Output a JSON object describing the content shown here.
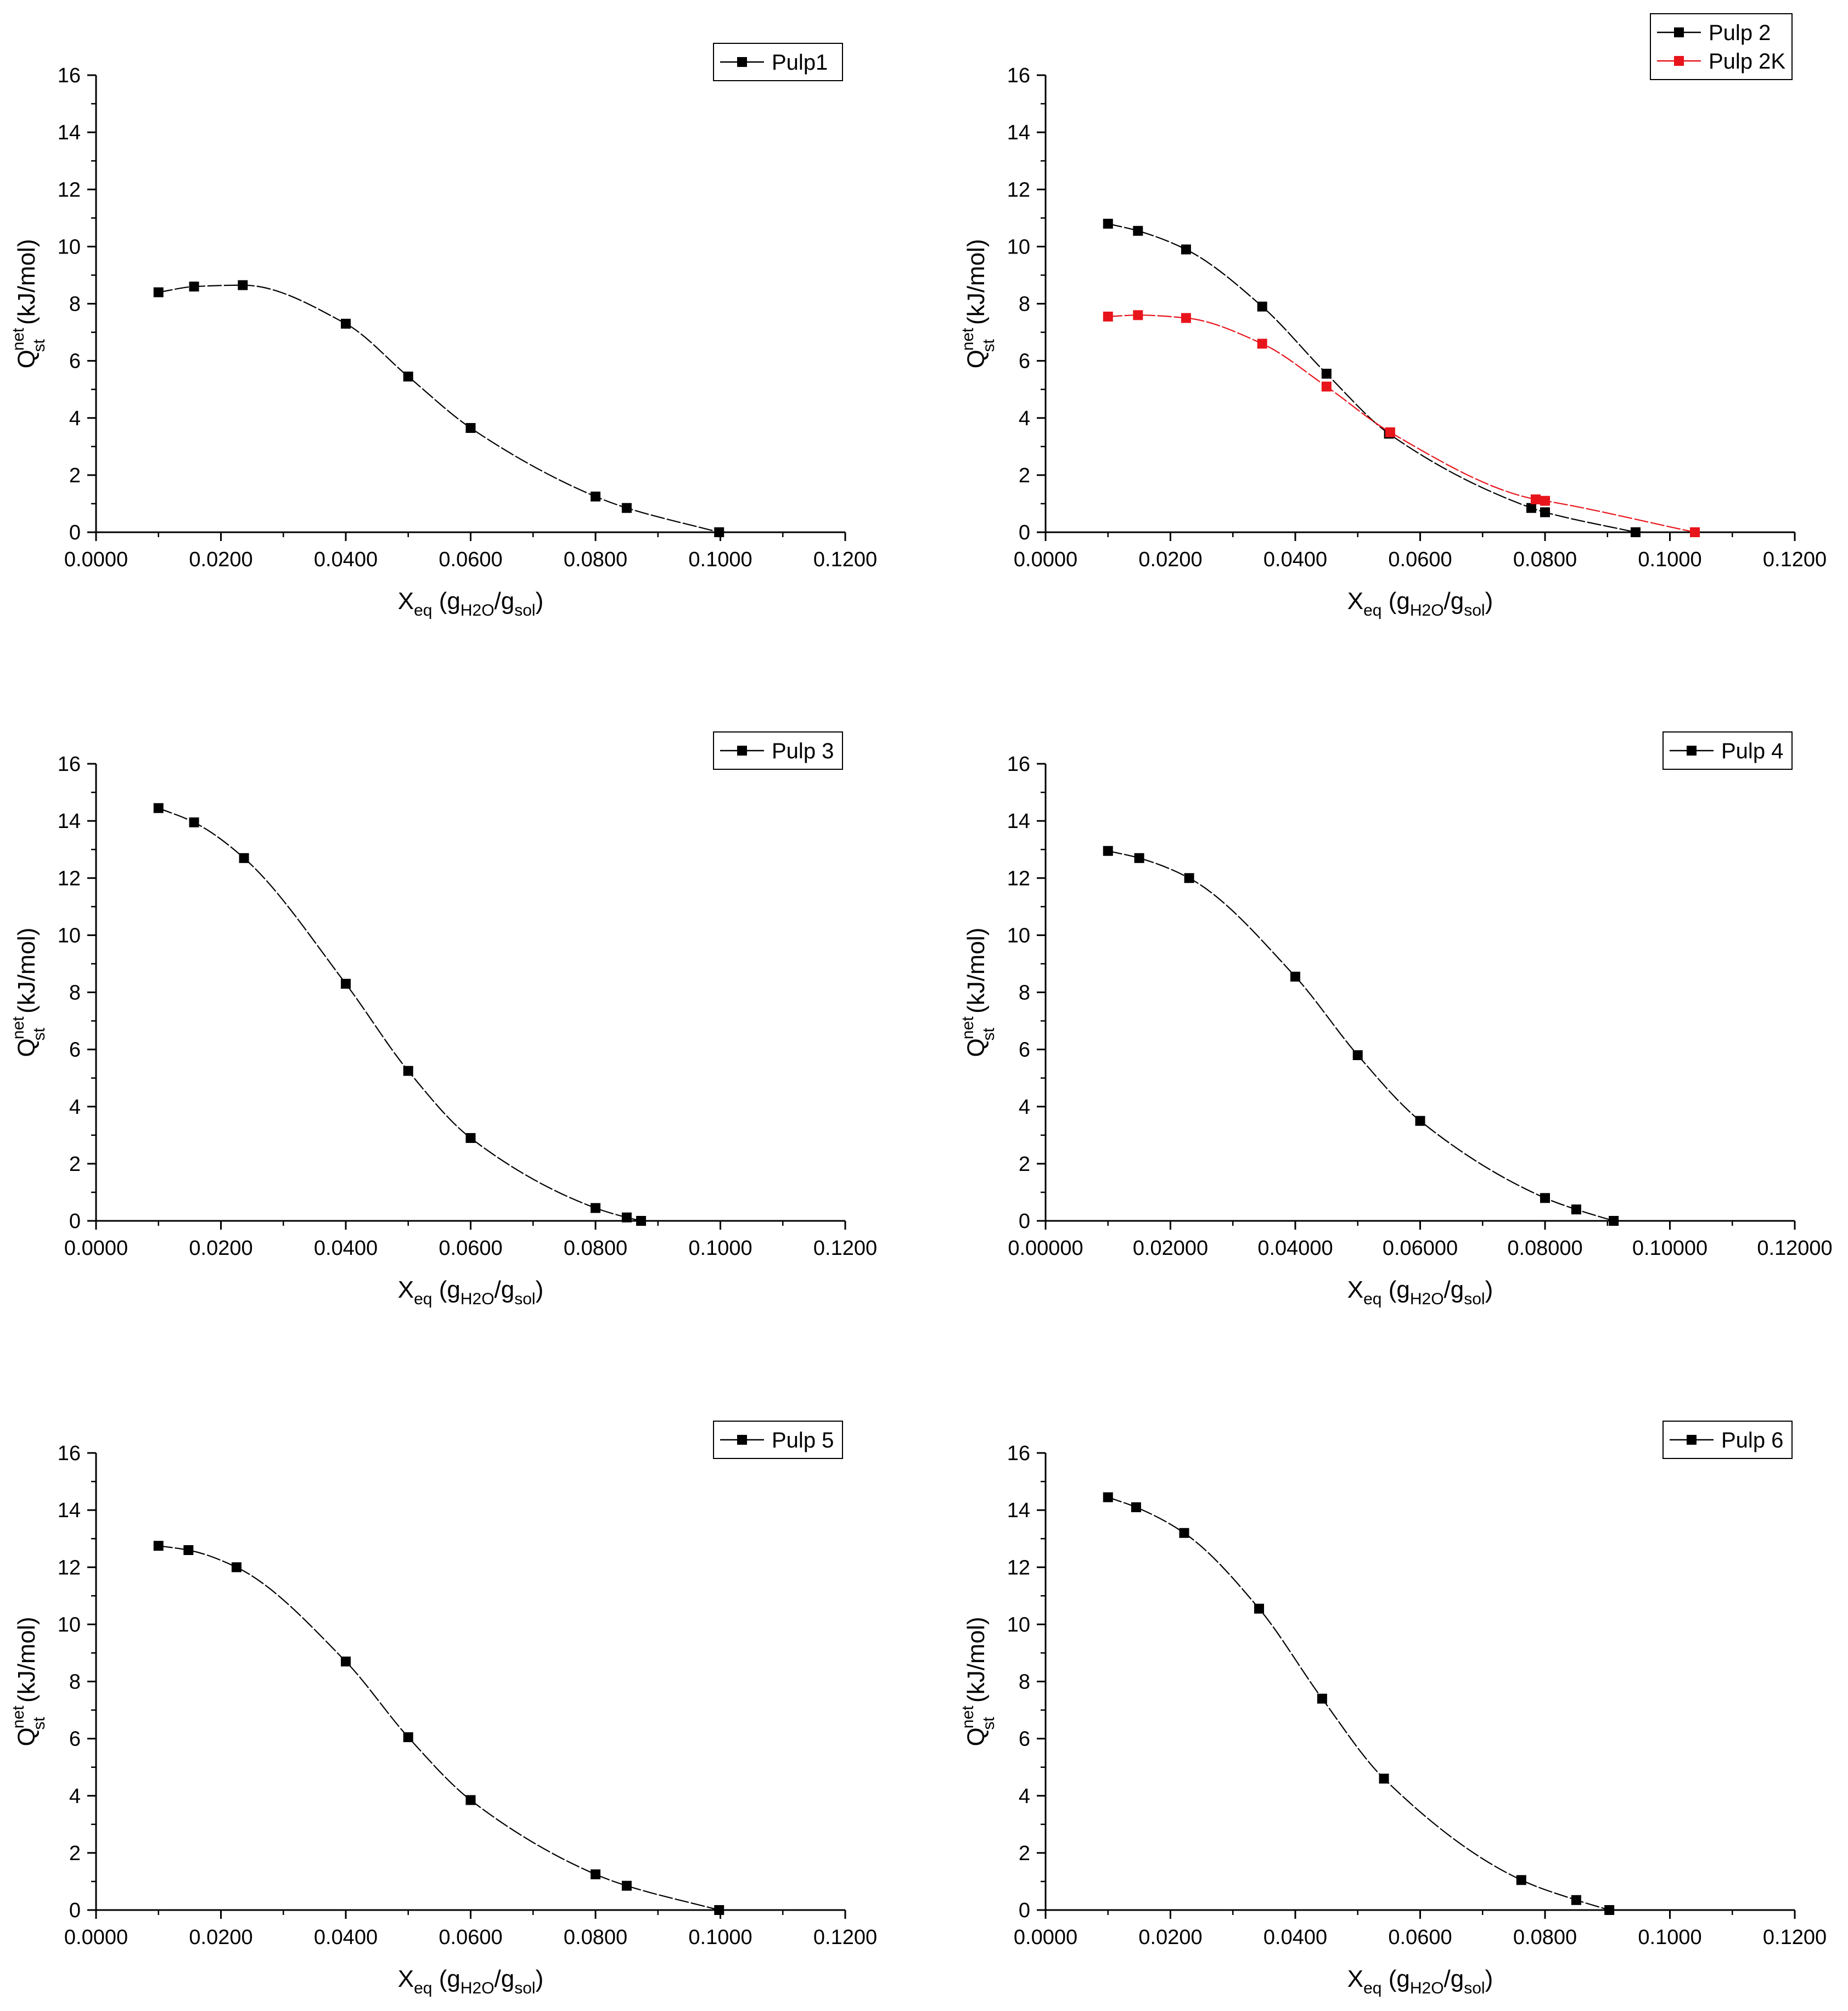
{
  "colors": {
    "black": "#000000",
    "red": "#e8141b"
  },
  "chart_data": [
    {
      "type": "line",
      "panel": "top-left",
      "legend_position": "top-right",
      "ylim": [
        0,
        16
      ],
      "yticks": [
        "0",
        "2",
        "4",
        "6",
        "8",
        "10",
        "12",
        "14",
        "16"
      ],
      "xlim": [
        0,
        0.12
      ],
      "xticks": [
        "0.0000",
        "0.0200",
        "0.0400",
        "0.0600",
        "0.0800",
        "0.1000",
        "0.1200"
      ],
      "ylabel": {
        "q": "Q",
        "sup": "net",
        "sub": "st",
        "rest": " (kJ/mol)"
      },
      "xlabel": {
        "x": "X",
        "xsub": "eq",
        "g1": " (g",
        "s1": "H2O",
        "g2": "/g",
        "s2": "sol",
        "end": ")"
      },
      "series": [
        {
          "name": "Pulp1",
          "color": "#000000",
          "x": [
            0.01,
            0.0157,
            0.0235,
            0.04,
            0.05,
            0.06,
            0.08,
            0.085,
            0.0998
          ],
          "y": [
            8.4,
            8.6,
            8.65,
            7.3,
            5.45,
            3.65,
            1.25,
            0.85,
            0.0
          ]
        }
      ]
    },
    {
      "type": "line",
      "panel": "top-right",
      "legend_position": "top-right",
      "ylim": [
        0,
        16
      ],
      "yticks": [
        "0",
        "2",
        "4",
        "6",
        "8",
        "10",
        "12",
        "14",
        "16"
      ],
      "xlim": [
        0,
        0.12
      ],
      "xticks": [
        "0.0000",
        "0.0200",
        "0.0400",
        "0.0600",
        "0.0800",
        "0.1000",
        "0.1200"
      ],
      "ylabel": {
        "q": "Q",
        "sup": "net",
        "sub": "st",
        "rest": " (kJ/mol)"
      },
      "xlabel": {
        "x": "X",
        "xsub": "eq",
        "g1": " (g",
        "s1": "H2O",
        "g2": "/g",
        "s2": "sol",
        "end": ")"
      },
      "series": [
        {
          "name": "Pulp 2",
          "color": "#000000",
          "x": [
            0.01,
            0.0148,
            0.0225,
            0.0347,
            0.045,
            0.055,
            0.0778,
            0.08,
            0.0945
          ],
          "y": [
            10.8,
            10.55,
            9.9,
            7.9,
            5.55,
            3.45,
            0.85,
            0.7,
            0.0
          ]
        },
        {
          "name": "Pulp 2K",
          "color": "#e8141b",
          "x": [
            0.01,
            0.0148,
            0.0225,
            0.0347,
            0.045,
            0.0552,
            0.0785,
            0.08,
            0.104
          ],
          "y": [
            7.55,
            7.6,
            7.5,
            6.6,
            5.1,
            3.5,
            1.15,
            1.1,
            0.0
          ]
        }
      ]
    },
    {
      "type": "line",
      "panel": "middle-left",
      "legend_position": "top-right",
      "ylim": [
        0,
        16
      ],
      "yticks": [
        "0",
        "2",
        "4",
        "6",
        "8",
        "10",
        "12",
        "14",
        "16"
      ],
      "xlim": [
        0,
        0.12
      ],
      "xticks": [
        "0.0000",
        "0.0200",
        "0.0400",
        "0.0600",
        "0.0800",
        "0.1000",
        "0.1200"
      ],
      "ylabel": {
        "q": "Q",
        "sup": "net",
        "sub": "st",
        "rest": " (kJ/mol)"
      },
      "xlabel": {
        "x": "X",
        "xsub": "eq",
        "g1": " (g",
        "s1": "H2O",
        "g2": "/g",
        "s2": "sol",
        "end": ")"
      },
      "series": [
        {
          "name": "Pulp 3",
          "color": "#000000",
          "x": [
            0.01,
            0.0157,
            0.0237,
            0.04,
            0.05,
            0.06,
            0.08,
            0.085,
            0.0873
          ],
          "y": [
            14.45,
            13.95,
            12.7,
            8.3,
            5.25,
            2.9,
            0.45,
            0.12,
            0.0
          ]
        }
      ]
    },
    {
      "type": "line",
      "panel": "middle-right",
      "legend_position": "top-right",
      "ylim": [
        0,
        16
      ],
      "yticks": [
        "0",
        "2",
        "4",
        "6",
        "8",
        "10",
        "12",
        "14",
        "16"
      ],
      "xlim": [
        0,
        0.12
      ],
      "xticks": [
        "0.00000",
        "0.02000",
        "0.04000",
        "0.06000",
        "0.08000",
        "0.10000",
        "0.12000"
      ],
      "ylabel": {
        "q": "Q",
        "sup": "net",
        "sub": "st",
        "rest": " (kJ/mol)"
      },
      "xlabel": {
        "x": "X",
        "xsub": "eq",
        "g1": " (g",
        "s1": "H2O",
        "g2": "/g",
        "s2": "sol",
        "end": ")"
      },
      "series": [
        {
          "name": "Pulp 4",
          "color": "#000000",
          "x": [
            0.01,
            0.015,
            0.023,
            0.04,
            0.05,
            0.06,
            0.08,
            0.085,
            0.091
          ],
          "y": [
            12.95,
            12.7,
            12.0,
            8.55,
            5.8,
            3.5,
            0.8,
            0.4,
            0.0
          ]
        }
      ]
    },
    {
      "type": "line",
      "panel": "bottom-left",
      "legend_position": "top-right",
      "ylim": [
        0,
        16
      ],
      "yticks": [
        "0",
        "2",
        "4",
        "6",
        "8",
        "10",
        "12",
        "14",
        "16"
      ],
      "xlim": [
        0,
        0.12
      ],
      "xticks": [
        "0.0000",
        "0.0200",
        "0.0400",
        "0.0600",
        "0.0800",
        "0.1000",
        "0.1200"
      ],
      "ylabel": {
        "q": "Q",
        "sup": "net",
        "sub": "st",
        "rest": " (kJ/mol)"
      },
      "xlabel": {
        "x": "X",
        "xsub": "eq",
        "g1": " (g",
        "s1": "H2O",
        "g2": "/g",
        "s2": "sol",
        "end": ")"
      },
      "series": [
        {
          "name": "Pulp 5",
          "color": "#000000",
          "x": [
            0.01,
            0.0148,
            0.0225,
            0.04,
            0.05,
            0.06,
            0.08,
            0.085,
            0.0998
          ],
          "y": [
            12.75,
            12.6,
            12.0,
            8.7,
            6.05,
            3.85,
            1.25,
            0.85,
            0.0
          ]
        }
      ]
    },
    {
      "type": "line",
      "panel": "bottom-right",
      "legend_position": "top-right",
      "ylim": [
        0,
        16
      ],
      "yticks": [
        "0",
        "2",
        "4",
        "6",
        "8",
        "10",
        "12",
        "14",
        "16"
      ],
      "xlim": [
        0,
        0.12
      ],
      "xticks": [
        "0.0000",
        "0.0200",
        "0.0400",
        "0.0600",
        "0.0800",
        "0.1000",
        "0.1200"
      ],
      "ylabel": {
        "q": "Q",
        "sup": "net",
        "sub": "st",
        "rest": " (kJ/mol)"
      },
      "xlabel": {
        "x": "X",
        "xsub": "eq",
        "g1": " (g",
        "s1": "H2O",
        "g2": "/g",
        "s2": "sol",
        "end": ")"
      },
      "series": [
        {
          "name": "Pulp 6",
          "color": "#000000",
          "x": [
            0.01,
            0.0145,
            0.0222,
            0.0342,
            0.0443,
            0.0542,
            0.0762,
            0.085,
            0.0903
          ],
          "y": [
            14.45,
            14.1,
            13.2,
            10.55,
            7.4,
            4.6,
            1.05,
            0.35,
            0.0
          ]
        }
      ]
    }
  ]
}
